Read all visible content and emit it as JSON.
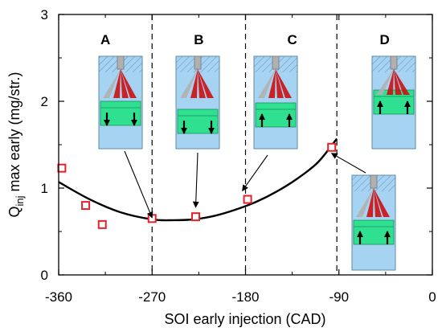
{
  "chart_data": {
    "type": "scatter",
    "xlabel": "SOI early injection (CAD)",
    "ylabel": {
      "main": "Q",
      "sub": "inj",
      "rest": " max early (mg/str.)"
    },
    "xlim": [
      -360,
      0
    ],
    "ylim": [
      0,
      3
    ],
    "x_ticks": [
      -360,
      -270,
      -180,
      -90,
      0
    ],
    "x_tick_labels": [
      "-360",
      "-270",
      "-180",
      "-90",
      "0"
    ],
    "y_ticks": [
      0,
      1,
      2,
      3
    ],
    "y_tick_labels": [
      "0",
      "1",
      "2",
      "3"
    ],
    "grid": false,
    "legend": "none",
    "series": [
      {
        "kind": "markers",
        "marker": "open-square",
        "color": "#e8202a",
        "x": [
          -357,
          -334,
          -318,
          -270,
          -228,
          -178,
          -97
        ],
        "y": [
          1.23,
          0.8,
          0.58,
          0.65,
          0.67,
          0.87,
          1.47
        ]
      },
      {
        "kind": "fit-curve",
        "color": "#000000",
        "x": [
          -360,
          -330,
          -300,
          -270,
          -250,
          -230,
          -210,
          -190,
          -170,
          -150,
          -130,
          -110,
          -92
        ],
        "y": [
          1.07,
          0.87,
          0.72,
          0.64,
          0.63,
          0.64,
          0.68,
          0.75,
          0.84,
          0.96,
          1.11,
          1.3,
          1.57
        ]
      }
    ],
    "vertical_lines": [
      -270,
      -180,
      -92
    ],
    "regions": [
      {
        "label": "A",
        "x": -315
      },
      {
        "label": "B",
        "x": -225
      },
      {
        "label": "C",
        "x": -135
      },
      {
        "label": "D",
        "x": -46
      }
    ],
    "annotations": [
      {
        "name": "A",
        "target": [
          -270,
          0.66
        ]
      },
      {
        "name": "B",
        "target": [
          -228,
          0.78
        ]
      },
      {
        "name": "C",
        "target": [
          -183,
          0.97
        ]
      },
      {
        "name": "D",
        "target": [
          -97,
          1.4
        ]
      }
    ],
    "colors": {
      "cylinder": "#a7d3f2",
      "piston": "#2fe090",
      "spray": "#cc1010",
      "injector": "#b0b0b0",
      "marker": "#e8202a"
    }
  }
}
